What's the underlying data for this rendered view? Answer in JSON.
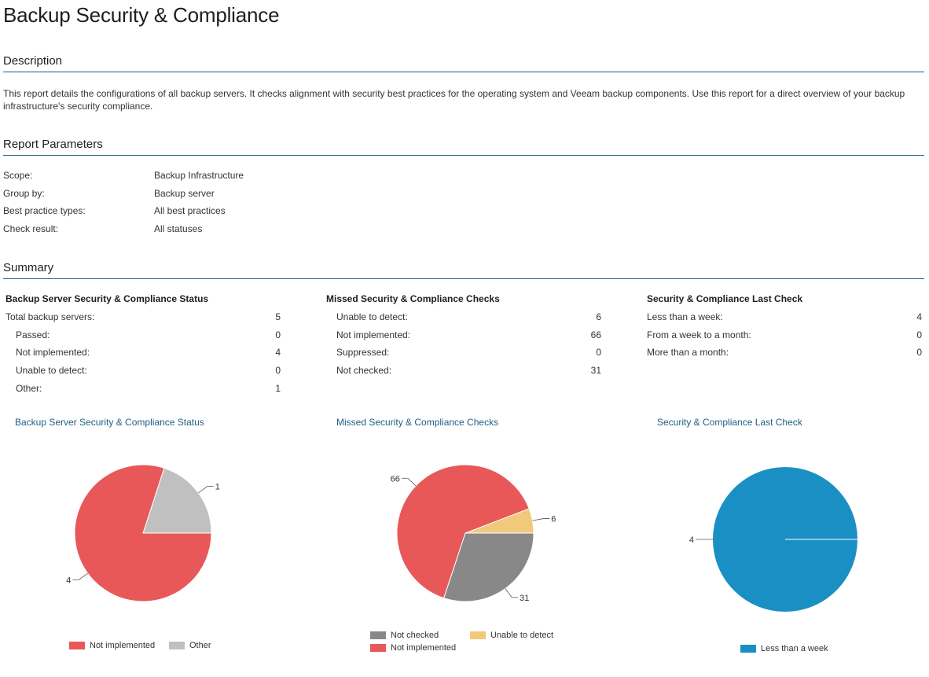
{
  "report": {
    "title": "Backup Security & Compliance",
    "description_heading": "Description",
    "description": "This report details the configurations of all backup servers. It checks alignment with security best practices for the operating system and Veeam backup components. Use this report for a direct overview of your backup infrastructure's security compliance.",
    "params_heading": "Report Parameters",
    "summary_heading": "Summary"
  },
  "params": [
    {
      "label": "Scope:",
      "value": "Backup Infrastructure"
    },
    {
      "label": "Group by:",
      "value": "Backup server"
    },
    {
      "label": "Best practice types:",
      "value": "All best practices"
    },
    {
      "label": "Check result:",
      "value": "All statuses"
    }
  ],
  "summary": {
    "status": {
      "title": "Backup Server Security & Compliance Status",
      "rows": [
        {
          "label": "Total backup servers:",
          "value": "5"
        },
        {
          "label": "Passed:",
          "value": "0"
        },
        {
          "label": "Not implemented:",
          "value": "4"
        },
        {
          "label": "Unable to detect:",
          "value": "0"
        },
        {
          "label": "Other:",
          "value": "1"
        }
      ]
    },
    "missed": {
      "title": "Missed Security & Compliance Checks",
      "rows": [
        {
          "label": "Unable to detect:",
          "value": "6"
        },
        {
          "label": "Not implemented:",
          "value": "66"
        },
        {
          "label": "Suppressed:",
          "value": "0"
        },
        {
          "label": "Not checked:",
          "value": "31"
        }
      ]
    },
    "last_check": {
      "title": "Security & Compliance Last Check",
      "rows": [
        {
          "label": "Less than a week:",
          "value": "4"
        },
        {
          "label": "From a week to a month:",
          "value": "0"
        },
        {
          "label": "More than a month:",
          "value": "0"
        }
      ]
    }
  },
  "colors": {
    "not_implemented": "#e85858",
    "other": "#c0c0c0",
    "not_checked": "#888888",
    "unable_to_detect": "#f1c97a",
    "less_than_week": "#1a8fc4",
    "accent": "#1f5d84"
  },
  "chart_data": [
    {
      "type": "pie",
      "title": "Backup Server Security & Compliance Status",
      "series": [
        {
          "name": "Not implemented",
          "value": 4
        },
        {
          "name": "Other",
          "value": 1
        }
      ],
      "legend": [
        "Not implemented",
        "Other"
      ],
      "legend_position": "bottom"
    },
    {
      "type": "pie",
      "title": "Missed Security & Compliance Checks",
      "series": [
        {
          "name": "Unable to detect",
          "value": 6
        },
        {
          "name": "Not checked",
          "value": 31
        },
        {
          "name": "Not implemented",
          "value": 66
        }
      ],
      "legend": [
        "Not checked",
        "Unable to detect",
        "Not implemented"
      ],
      "legend_position": "bottom"
    },
    {
      "type": "pie",
      "title": "Security & Compliance Last Check",
      "series": [
        {
          "name": "Less than a week",
          "value": 4
        }
      ],
      "legend": [
        "Less than a week"
      ],
      "legend_position": "bottom"
    }
  ]
}
